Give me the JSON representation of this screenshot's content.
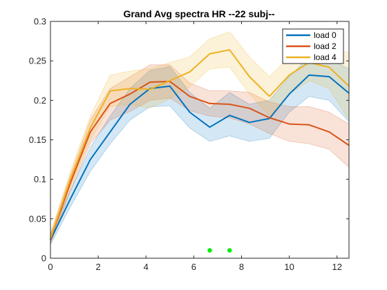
{
  "chart_data": {
    "type": "line",
    "title": "Grand Avg spectra HR --22 subj--",
    "xlabel": "",
    "ylabel": "",
    "xlim": [
      0,
      12.5
    ],
    "ylim": [
      0,
      0.3
    ],
    "xticks": [
      0,
      2,
      4,
      6,
      8,
      10,
      12
    ],
    "yticks": [
      0,
      0.05,
      0.1,
      0.15,
      0.2,
      0.25,
      0.3
    ],
    "xtick_labels": [
      "0",
      "2",
      "4",
      "6",
      "8",
      "10",
      "12"
    ],
    "ytick_labels": [
      "0",
      "0.05",
      "0.1",
      "0.15",
      "0.2",
      "0.25",
      "0.3"
    ],
    "grid": false,
    "legend_position": "top-right",
    "x": [
      0,
      0.83,
      1.67,
      2.5,
      3.33,
      4.17,
      5.0,
      5.83,
      6.67,
      7.5,
      8.33,
      9.17,
      10.0,
      10.83,
      11.67,
      12.5
    ],
    "series": [
      {
        "name": "load 0",
        "color": "#0072BD",
        "values": [
          0.023,
          0.075,
          0.125,
          0.16,
          0.195,
          0.215,
          0.218,
          0.185,
          0.166,
          0.181,
          0.172,
          0.177,
          0.208,
          0.232,
          0.23,
          0.209
        ],
        "band_upper": [
          0.03,
          0.085,
          0.14,
          0.18,
          0.215,
          0.238,
          0.243,
          0.21,
          0.19,
          0.21,
          0.195,
          0.2,
          0.23,
          0.255,
          0.252,
          0.24
        ],
        "band_lower": [
          0.017,
          0.065,
          0.11,
          0.145,
          0.175,
          0.192,
          0.193,
          0.165,
          0.148,
          0.155,
          0.148,
          0.152,
          0.185,
          0.205,
          0.2,
          0.173
        ]
      },
      {
        "name": "load 2",
        "color": "#D95319",
        "values": [
          0.024,
          0.095,
          0.16,
          0.196,
          0.208,
          0.223,
          0.224,
          0.205,
          0.196,
          0.195,
          0.19,
          0.178,
          0.17,
          0.169,
          0.16,
          0.143
        ],
        "band_upper": [
          0.03,
          0.105,
          0.175,
          0.215,
          0.23,
          0.245,
          0.245,
          0.222,
          0.212,
          0.212,
          0.21,
          0.198,
          0.192,
          0.192,
          0.185,
          0.17
        ],
        "band_lower": [
          0.018,
          0.085,
          0.145,
          0.175,
          0.186,
          0.2,
          0.203,
          0.187,
          0.18,
          0.178,
          0.17,
          0.158,
          0.148,
          0.145,
          0.138,
          0.115
        ]
      },
      {
        "name": "load 4",
        "color": "#EDB120",
        "values": [
          0.025,
          0.1,
          0.165,
          0.212,
          0.215,
          0.214,
          0.225,
          0.236,
          0.259,
          0.264,
          0.23,
          0.205,
          0.232,
          0.248,
          0.242,
          0.218
        ],
        "band_upper": [
          0.032,
          0.11,
          0.18,
          0.232,
          0.237,
          0.24,
          0.248,
          0.255,
          0.278,
          0.287,
          0.255,
          0.23,
          0.255,
          0.27,
          0.268,
          0.26
        ],
        "band_lower": [
          0.018,
          0.09,
          0.15,
          0.192,
          0.195,
          0.19,
          0.202,
          0.217,
          0.24,
          0.242,
          0.208,
          0.18,
          0.208,
          0.225,
          0.215,
          0.175
        ]
      }
    ],
    "markers": {
      "color": "#00EE00",
      "points": [
        [
          6.67,
          0.01
        ],
        [
          7.5,
          0.01
        ]
      ]
    }
  }
}
